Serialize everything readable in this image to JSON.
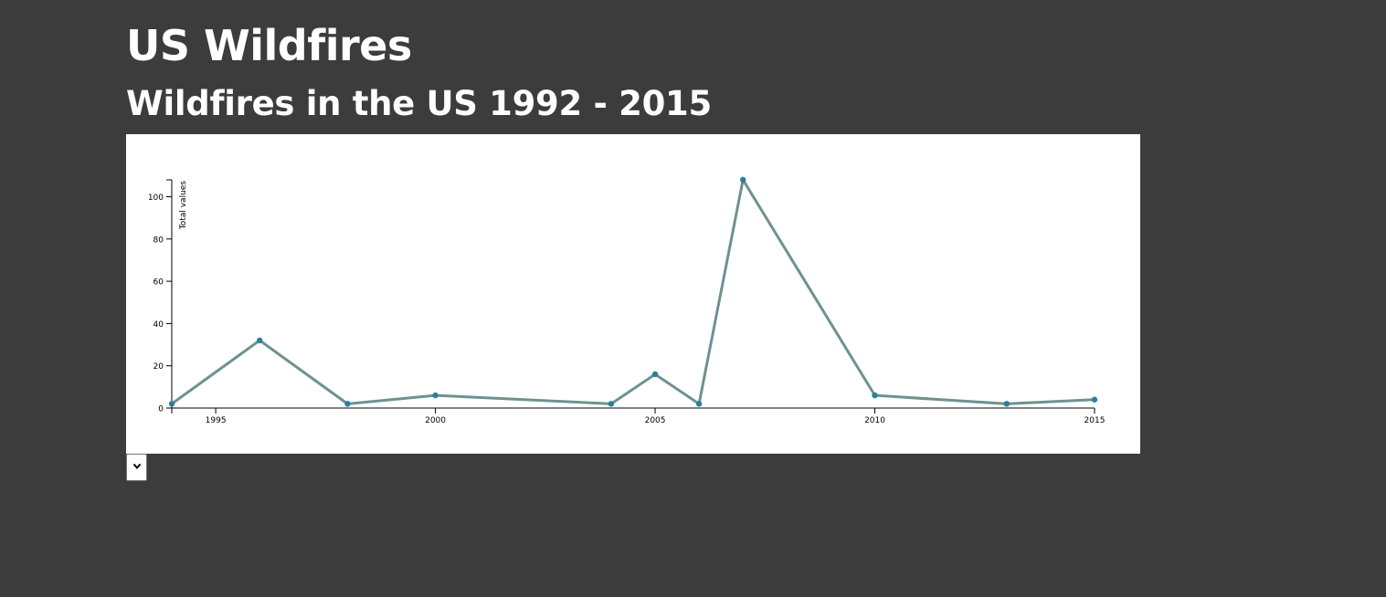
{
  "page": {
    "title": "US Wildfires",
    "subtitle": "Wildfires in the US 1992 - 2015"
  },
  "controls": {
    "select_value": ""
  },
  "colors": {
    "background": "#3c3c3c",
    "line": "#6f9191",
    "point": "#2b7f9e"
  },
  "chart_data": {
    "type": "line",
    "title": "",
    "xlabel": "",
    "ylabel": "Total values",
    "xlim": [
      1994,
      2015
    ],
    "ylim": [
      0,
      108
    ],
    "x_ticks": [
      1995,
      2000,
      2005,
      2010,
      2015
    ],
    "y_ticks": [
      0,
      20,
      40,
      60,
      80,
      100
    ],
    "grid": false,
    "legend": "none",
    "series": [
      {
        "x": [
          1994,
          1996,
          1998,
          2000,
          2004,
          2005,
          2006,
          2007,
          2010,
          2013,
          2015
        ],
        "y": [
          2,
          32,
          2,
          6,
          2,
          16,
          2,
          108,
          6,
          2,
          4
        ]
      }
    ]
  }
}
